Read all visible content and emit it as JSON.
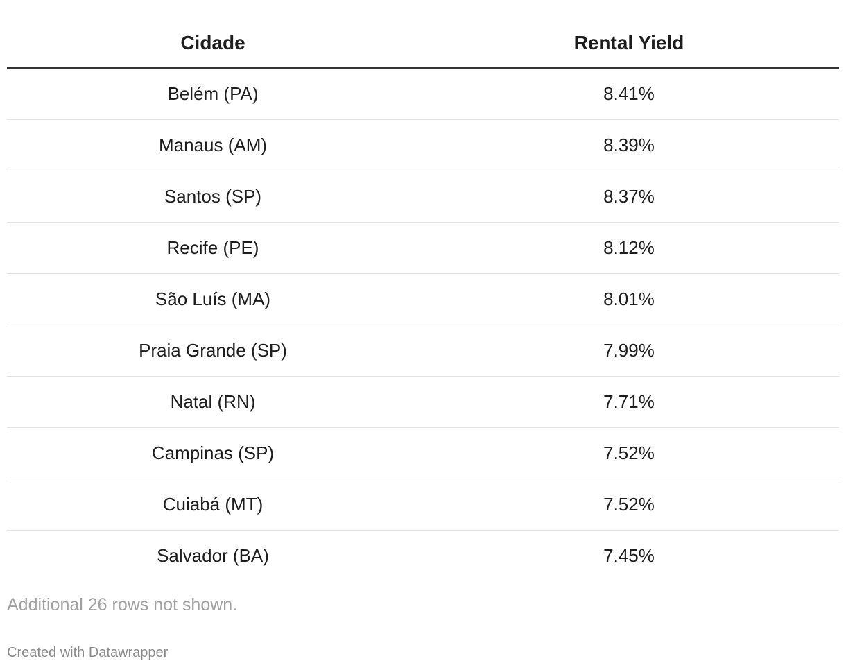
{
  "chart_data": {
    "type": "table",
    "columns": [
      "Cidade",
      "Rental Yield"
    ],
    "rows": [
      {
        "cidade": "Belém (PA)",
        "rental_yield": "8.41%"
      },
      {
        "cidade": "Manaus (AM)",
        "rental_yield": "8.39%"
      },
      {
        "cidade": "Santos (SP)",
        "rental_yield": "8.37%"
      },
      {
        "cidade": "Recife (PE)",
        "rental_yield": "8.12%"
      },
      {
        "cidade": "São Luís (MA)",
        "rental_yield": "8.01%"
      },
      {
        "cidade": "Praia Grande (SP)",
        "rental_yield": "7.99%"
      },
      {
        "cidade": "Natal (RN)",
        "rental_yield": "7.71%"
      },
      {
        "cidade": "Campinas (SP)",
        "rental_yield": "7.52%"
      },
      {
        "cidade": "Cuiabá (MT)",
        "rental_yield": "7.52%"
      },
      {
        "cidade": "Salvador (BA)",
        "rental_yield": "7.45%"
      }
    ],
    "notes": "Additional 26 rows not shown."
  },
  "footer": {
    "credit": "Created with Datawrapper"
  },
  "colors": {
    "text": "#1d1d1d",
    "header_rule": "#333333",
    "row_rule": "#e3e3e3",
    "notes": "#a0a0a0"
  }
}
